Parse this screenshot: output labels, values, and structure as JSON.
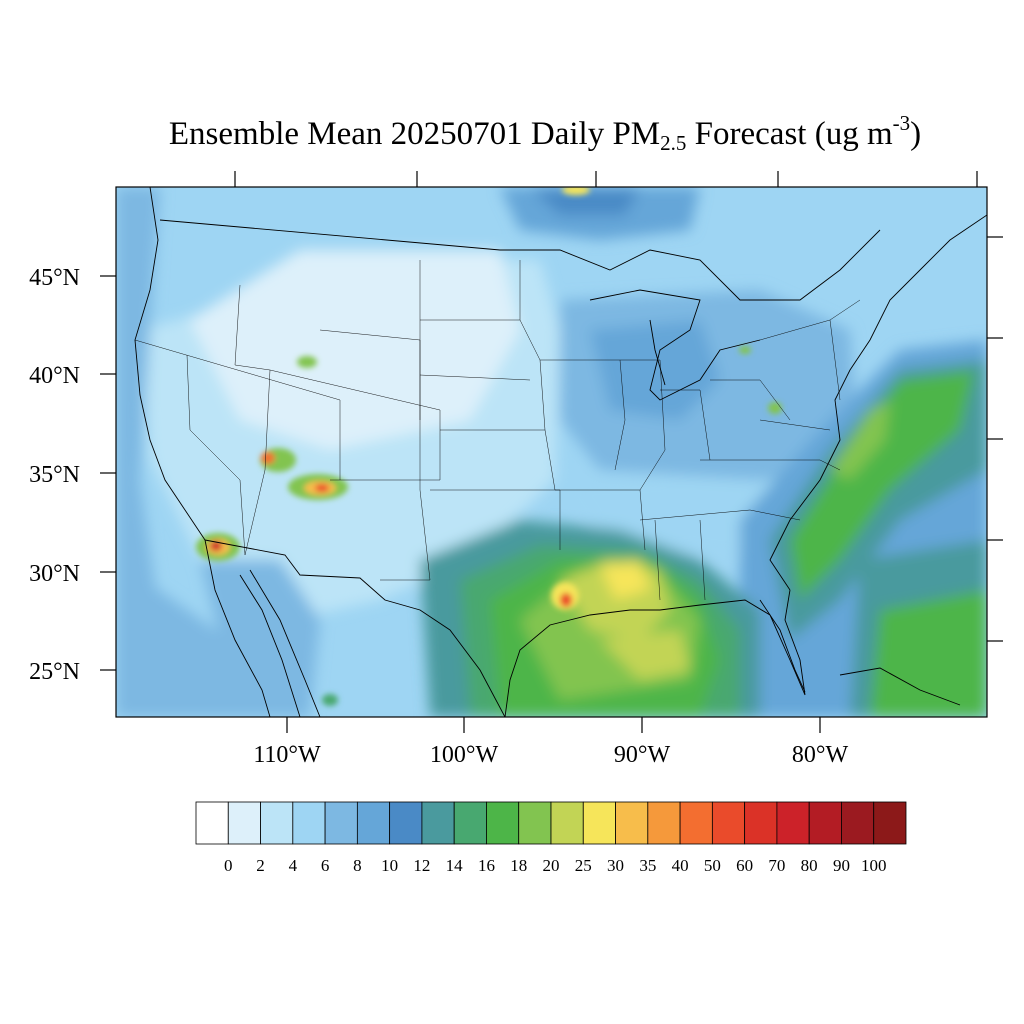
{
  "title": {
    "pre": "Ensemble Mean 20250701 Daily PM",
    "subscript": "2.5",
    "mid": " Forecast (ug m",
    "superscript": "-3",
    "post": ")"
  },
  "map": {
    "lat_labels": [
      "45°N",
      "40°N",
      "35°N",
      "30°N",
      "25°N"
    ],
    "lon_labels": [
      "110°W",
      "100°W",
      "90°W",
      "80°W"
    ]
  },
  "colorbar": {
    "labels": [
      "0",
      "2",
      "4",
      "6",
      "8",
      "10",
      "12",
      "14",
      "16",
      "18",
      "20",
      "25",
      "30",
      "35",
      "40",
      "50",
      "60",
      "70",
      "80",
      "90",
      "100"
    ],
    "colors": [
      "#ffffff",
      "#ddf0fa",
      "#bce4f7",
      "#9ed5f3",
      "#7db8e2",
      "#65a6d8",
      "#4a8ac6",
      "#4a9a9e",
      "#48a870",
      "#4db548",
      "#82c450",
      "#c2d455",
      "#f6e55a",
      "#f7bd4b",
      "#f5993b",
      "#f36e30",
      "#ea4b2b",
      "#db3227",
      "#cc2229",
      "#b31c24",
      "#9b1a20",
      "#8c1919"
    ]
  }
}
